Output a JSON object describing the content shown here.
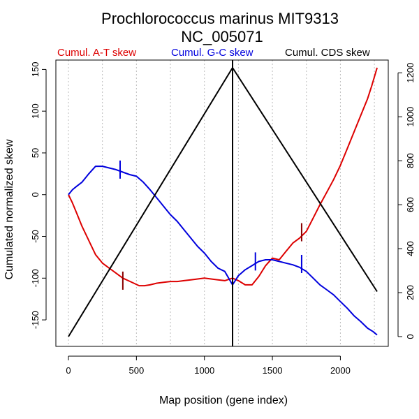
{
  "chart_data": {
    "type": "line",
    "title": "Prochlorococcus marinus MIT9313",
    "subtitle": "NC_005071",
    "xlabel": "Map position (gene index)",
    "ylabel": "Cumulated normalized skew",
    "xlim": [
      0,
      2270
    ],
    "ylim": [
      -170,
      152
    ],
    "y2lim": [
      0,
      1223
    ],
    "x_ticks": [
      0,
      500,
      1000,
      1500,
      2000
    ],
    "x_tick_labels": [
      "0",
      "500",
      "1000",
      "1500",
      "2000"
    ],
    "y_ticks": [
      -150,
      -100,
      -50,
      0,
      50,
      100,
      150
    ],
    "y_tick_labels": [
      "-150",
      "-100",
      "-50",
      "0",
      "50",
      "100",
      "150"
    ],
    "y2_ticks": [
      0,
      200,
      400,
      600,
      800,
      1000,
      1200
    ],
    "y2_tick_labels": [
      "0",
      "200",
      "400",
      "600",
      "800",
      "1000",
      "1200"
    ],
    "grid_x": [
      0,
      250,
      500,
      750,
      1000,
      1250,
      1500,
      1750,
      2000,
      2250
    ],
    "legend": [
      {
        "label": "Cumul. A-T skew",
        "color": "#dd0000"
      },
      {
        "label": "Cumul. G-C skew",
        "color": "#0000dd"
      },
      {
        "label": "Cumul. CDS skew",
        "color": "#000000"
      }
    ],
    "vertical_line_x": 1207,
    "series": [
      {
        "name": "Cumul. A-T skew",
        "axis": "left",
        "color": "#dd0000",
        "x": [
          0,
          30,
          60,
          100,
          150,
          200,
          250,
          300,
          350,
          400,
          440,
          480,
          520,
          560,
          600,
          650,
          700,
          750,
          800,
          850,
          900,
          950,
          1000,
          1050,
          1100,
          1150,
          1207,
          1250,
          1300,
          1350,
          1400,
          1450,
          1500,
          1550,
          1600,
          1650,
          1700,
          1750,
          1800,
          1850,
          1900,
          1950,
          2000,
          2050,
          2100,
          2150,
          2200,
          2230,
          2270
        ],
        "values": [
          0,
          -10,
          -22,
          -38,
          -55,
          -72,
          -82,
          -88,
          -94,
          -100,
          -103,
          -106,
          -109,
          -109,
          -108,
          -106,
          -105,
          -104,
          -104,
          -103,
          -102,
          -101,
          -100,
          -101,
          -102,
          -103,
          -100,
          -103,
          -108,
          -108,
          -98,
          -85,
          -76,
          -78,
          -68,
          -58,
          -52,
          -44,
          -28,
          -12,
          3,
          18,
          35,
          55,
          75,
          95,
          115,
          130,
          152
        ]
      },
      {
        "name": "Cumul. G-C skew",
        "axis": "left",
        "color": "#0000dd",
        "x": [
          0,
          30,
          60,
          100,
          150,
          200,
          250,
          300,
          350,
          400,
          450,
          500,
          550,
          600,
          650,
          700,
          750,
          800,
          850,
          900,
          950,
          1000,
          1050,
          1100,
          1150,
          1207,
          1250,
          1300,
          1350,
          1400,
          1450,
          1500,
          1550,
          1600,
          1650,
          1700,
          1750,
          1800,
          1850,
          1900,
          1950,
          2000,
          2050,
          2100,
          2150,
          2200,
          2240,
          2270
        ],
        "values": [
          0,
          6,
          10,
          15,
          25,
          34,
          34,
          32,
          30,
          27,
          24,
          22,
          15,
          6,
          -4,
          -14,
          -24,
          -32,
          -42,
          -52,
          -62,
          -70,
          -80,
          -88,
          -92,
          -108,
          -97,
          -90,
          -85,
          -80,
          -78,
          -78,
          -80,
          -82,
          -84,
          -87,
          -92,
          -100,
          -108,
          -114,
          -120,
          -128,
          -136,
          -145,
          -152,
          -160,
          -164,
          -168
        ]
      },
      {
        "name": "Cumul. CDS skew",
        "axis": "right",
        "color": "#000000",
        "x": [
          0,
          1207,
          2270
        ],
        "values": [
          0,
          1223,
          205
        ]
      }
    ],
    "markers": [
      {
        "series": "Cumul. A-T skew",
        "x": 400,
        "value": -103,
        "color": "#880000"
      },
      {
        "series": "Cumul. A-T skew",
        "x": 1715,
        "value": -45,
        "color": "#880000"
      },
      {
        "series": "Cumul. G-C skew",
        "x": 380,
        "value": 30,
        "color": "#0000dd"
      },
      {
        "series": "Cumul. G-C skew",
        "x": 1375,
        "value": -80,
        "color": "#0000dd"
      },
      {
        "series": "Cumul. G-C skew",
        "x": 1715,
        "value": -83,
        "color": "#0000dd"
      }
    ]
  }
}
